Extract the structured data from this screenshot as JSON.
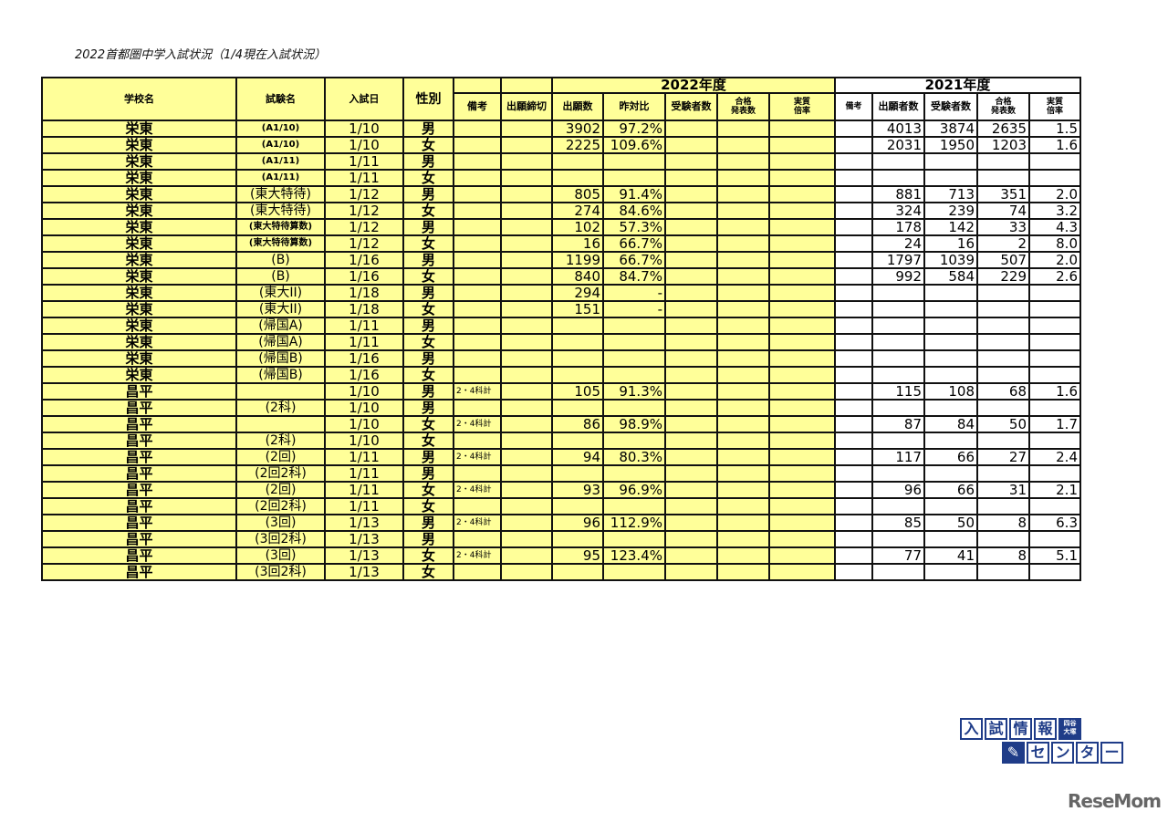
{
  "title": "2022首都圏中学入試状況（1/4現在入試状況）",
  "colors": {
    "highlight": "#ffff99",
    "border": "#111111",
    "logo_blue": "#1f3c88"
  },
  "header": {
    "school": "学校名",
    "exam": "試験名",
    "date": "入試日",
    "gender": "性別",
    "year2022": "2022年度",
    "year2021": "2021年度",
    "cols2022": [
      "備考",
      "出願締切",
      "出願数",
      "昨対比",
      "受験者数",
      "合格\n発表数",
      "実質\n倍率"
    ],
    "cols2021": [
      "備考",
      "出願者数",
      "受験者数",
      "合格\n発表数",
      "実質\n倍率"
    ]
  },
  "rows": [
    [
      "栄東",
      "(A1/10)",
      "1/10",
      "男",
      "",
      "",
      "3902",
      "97.2%",
      "",
      "",
      "",
      "",
      "4013",
      "3874",
      "2635",
      "1.5"
    ],
    [
      "栄東",
      "(A1/10)",
      "1/10",
      "女",
      "",
      "",
      "2225",
      "109.6%",
      "",
      "",
      "",
      "",
      "2031",
      "1950",
      "1203",
      "1.6"
    ],
    [
      "栄東",
      "(A1/11)",
      "1/11",
      "男",
      "",
      "",
      "",
      "",
      "",
      "",
      "",
      "",
      "",
      "",
      "",
      ""
    ],
    [
      "栄東",
      "(A1/11)",
      "1/11",
      "女",
      "",
      "",
      "",
      "",
      "",
      "",
      "",
      "",
      "",
      "",
      "",
      ""
    ],
    [
      "栄東",
      "(東大特待)",
      "1/12",
      "男",
      "",
      "",
      "805",
      "91.4%",
      "",
      "",
      "",
      "",
      "881",
      "713",
      "351",
      "2.0"
    ],
    [
      "栄東",
      "(東大特待)",
      "1/12",
      "女",
      "",
      "",
      "274",
      "84.6%",
      "",
      "",
      "",
      "",
      "324",
      "239",
      "74",
      "3.2"
    ],
    [
      "栄東",
      "(東大特待算数)",
      "1/12",
      "男",
      "",
      "",
      "102",
      "57.3%",
      "",
      "",
      "",
      "",
      "178",
      "142",
      "33",
      "4.3"
    ],
    [
      "栄東",
      "(東大特待算数)",
      "1/12",
      "女",
      "",
      "",
      "16",
      "66.7%",
      "",
      "",
      "",
      "",
      "24",
      "16",
      "2",
      "8.0"
    ],
    [
      "栄東",
      "(B)",
      "1/16",
      "男",
      "",
      "",
      "1199",
      "66.7%",
      "",
      "",
      "",
      "",
      "1797",
      "1039",
      "507",
      "2.0"
    ],
    [
      "栄東",
      "(B)",
      "1/16",
      "女",
      "",
      "",
      "840",
      "84.7%",
      "",
      "",
      "",
      "",
      "992",
      "584",
      "229",
      "2.6"
    ],
    [
      "栄東",
      "(東大II)",
      "1/18",
      "男",
      "",
      "",
      "294",
      "-",
      "",
      "",
      "",
      "",
      "",
      "",
      "",
      ""
    ],
    [
      "栄東",
      "(東大II)",
      "1/18",
      "女",
      "",
      "",
      "151",
      "-",
      "",
      "",
      "",
      "",
      "",
      "",
      "",
      ""
    ],
    [
      "栄東",
      "(帰国A)",
      "1/11",
      "男",
      "",
      "",
      "",
      "",
      "",
      "",
      "",
      "",
      "",
      "",
      "",
      ""
    ],
    [
      "栄東",
      "(帰国A)",
      "1/11",
      "女",
      "",
      "",
      "",
      "",
      "",
      "",
      "",
      "",
      "",
      "",
      "",
      ""
    ],
    [
      "栄東",
      "(帰国B)",
      "1/16",
      "男",
      "",
      "",
      "",
      "",
      "",
      "",
      "",
      "",
      "",
      "",
      "",
      ""
    ],
    [
      "栄東",
      "(帰国B)",
      "1/16",
      "女",
      "",
      "",
      "",
      "",
      "",
      "",
      "",
      "",
      "",
      "",
      "",
      ""
    ],
    [
      "昌平",
      "",
      "1/10",
      "男",
      "2・4科計",
      "",
      "105",
      "91.3%",
      "",
      "",
      "",
      "",
      "115",
      "108",
      "68",
      "1.6"
    ],
    [
      "昌平",
      "(2科)",
      "1/10",
      "男",
      "",
      "",
      "",
      "",
      "",
      "",
      "",
      "",
      "",
      "",
      "",
      ""
    ],
    [
      "昌平",
      "",
      "1/10",
      "女",
      "2・4科計",
      "",
      "86",
      "98.9%",
      "",
      "",
      "",
      "",
      "87",
      "84",
      "50",
      "1.7"
    ],
    [
      "昌平",
      "(2科)",
      "1/10",
      "女",
      "",
      "",
      "",
      "",
      "",
      "",
      "",
      "",
      "",
      "",
      "",
      ""
    ],
    [
      "昌平",
      "(2回)",
      "1/11",
      "男",
      "2・4科計",
      "",
      "94",
      "80.3%",
      "",
      "",
      "",
      "",
      "117",
      "66",
      "27",
      "2.4"
    ],
    [
      "昌平",
      "(2回2科)",
      "1/11",
      "男",
      "",
      "",
      "",
      "",
      "",
      "",
      "",
      "",
      "",
      "",
      "",
      ""
    ],
    [
      "昌平",
      "(2回)",
      "1/11",
      "女",
      "2・4科計",
      "",
      "93",
      "96.9%",
      "",
      "",
      "",
      "",
      "96",
      "66",
      "31",
      "2.1"
    ],
    [
      "昌平",
      "(2回2科)",
      "1/11",
      "女",
      "",
      "",
      "",
      "",
      "",
      "",
      "",
      "",
      "",
      "",
      "",
      ""
    ],
    [
      "昌平",
      "(3回)",
      "1/13",
      "男",
      "2・4科計",
      "",
      "96",
      "112.9%",
      "",
      "",
      "",
      "",
      "85",
      "50",
      "8",
      "6.3"
    ],
    [
      "昌平",
      "(3回2科)",
      "1/13",
      "男",
      "",
      "",
      "",
      "",
      "",
      "",
      "",
      "",
      "",
      "",
      "",
      ""
    ],
    [
      "昌平",
      "(3回)",
      "1/13",
      "女",
      "2・4科計",
      "",
      "95",
      "123.4%",
      "",
      "",
      "",
      "",
      "77",
      "41",
      "8",
      "5.1"
    ],
    [
      "昌平",
      "(3回2科)",
      "1/13",
      "女",
      "",
      "",
      "",
      "",
      "",
      "",
      "",
      "",
      "",
      "",
      "",
      ""
    ]
  ],
  "logo": {
    "line1": [
      "入",
      "試",
      "情",
      "報"
    ],
    "badge": "四谷\n大塚",
    "line2": [
      "セ",
      "ン",
      "タ",
      "ー"
    ]
  },
  "watermark": "ReseMom"
}
